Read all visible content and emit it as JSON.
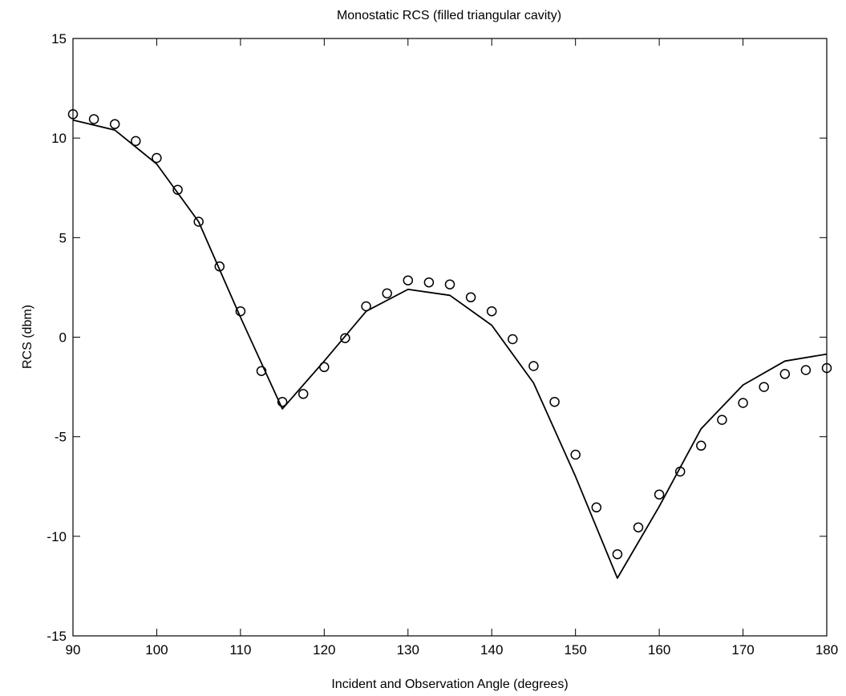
{
  "chart_data": {
    "type": "line",
    "title": "Monostatic RCS (filled triangular cavity)",
    "xlabel": "Incident and Observation Angle (degrees)",
    "ylabel": "RCS (dbm)",
    "xlim": [
      90,
      180
    ],
    "ylim": [
      -15,
      15
    ],
    "x_ticks": [
      90,
      100,
      110,
      120,
      130,
      140,
      150,
      160,
      170,
      180
    ],
    "y_ticks": [
      15,
      10,
      5,
      0,
      -5,
      -10,
      -15
    ],
    "grid": false,
    "legend": "none",
    "series": [
      {
        "style": "solid-line",
        "color": "#000000",
        "x": [
          90,
          95,
          100,
          105,
          110,
          115,
          120,
          125,
          130,
          135,
          140,
          145,
          150,
          155,
          160,
          165,
          170,
          175,
          180
        ],
        "y": [
          10.9,
          10.4,
          8.7,
          5.8,
          1.0,
          -3.6,
          -1.2,
          1.3,
          2.4,
          2.1,
          0.6,
          -2.3,
          -7.0,
          -12.1,
          -8.5,
          -4.6,
          -2.4,
          -1.2,
          -0.85
        ]
      },
      {
        "style": "open-circle-markers",
        "color": "#000000",
        "x": [
          90,
          92.5,
          95,
          97.5,
          100,
          102.5,
          105,
          107.5,
          110,
          112.5,
          115,
          117.5,
          120,
          122.5,
          125,
          127.5,
          130,
          132.5,
          135,
          137.5,
          140,
          142.5,
          145,
          147.5,
          150,
          152.5,
          155,
          157.5,
          160,
          162.5,
          165,
          167.5,
          170,
          172.5,
          175,
          177.5,
          180
        ],
        "y": [
          11.2,
          10.95,
          10.7,
          9.85,
          9.0,
          7.4,
          5.8,
          3.55,
          1.3,
          -1.7,
          -3.25,
          -2.85,
          -1.5,
          -0.05,
          1.55,
          2.2,
          2.85,
          2.75,
          2.65,
          2.0,
          1.3,
          -0.1,
          -1.45,
          -3.25,
          -5.9,
          -8.55,
          -10.9,
          -9.55,
          -7.9,
          -6.75,
          -5.45,
          -4.15,
          -3.3,
          -2.5,
          -1.85,
          -1.65,
          -1.55
        ]
      }
    ]
  }
}
